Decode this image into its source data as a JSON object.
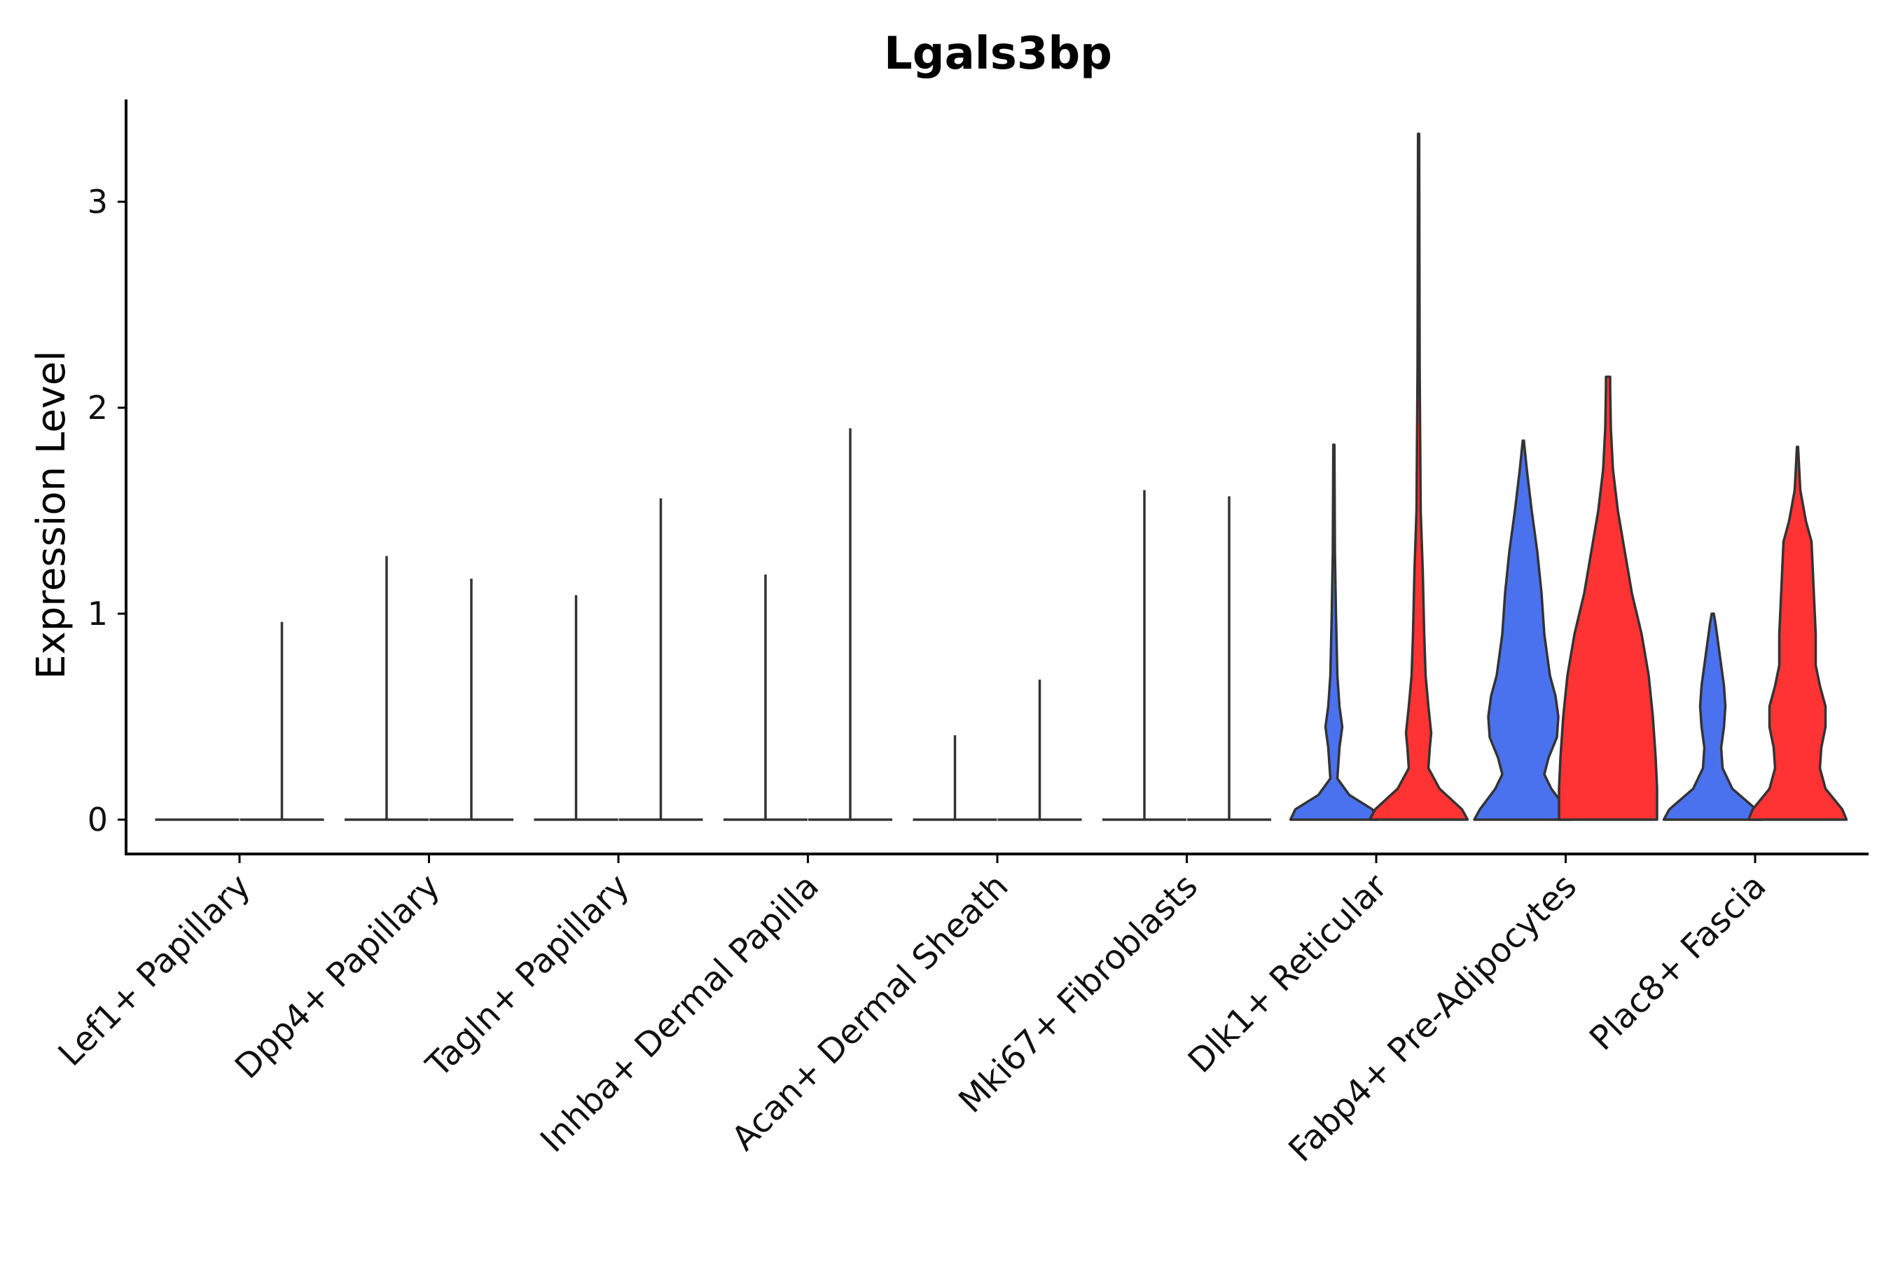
{
  "chart_data": {
    "type": "violin",
    "title": "Lgals3bp",
    "xlabel": "",
    "ylabel": "Expression Level",
    "ylim": [
      -0.17,
      3.5
    ],
    "yticks": [
      "0",
      "1",
      "2",
      "3"
    ],
    "grid": false,
    "legend": "none",
    "colors": {
      "group1": "#4A72EE",
      "group2": "#FF3333",
      "neutral": "#FFFFFF",
      "outline": "#333333"
    },
    "categories": [
      "Lef1+ Papillary",
      "Dpp4+ Papillary",
      "Tagln+ Papillary",
      "Inhba+ Dermal Papilla",
      "Acan+ Dermal Sheath",
      "Mki67+ Fibroblasts",
      "Dlk1+ Reticular",
      "Fabp4+ Pre-Adipocytes",
      "Plac8+ Fascia"
    ],
    "series": [
      {
        "name": "group1",
        "max_values": [
          0,
          1.28,
          1.09,
          1.19,
          0.41,
          1.6,
          1.82,
          1.84,
          1.0
        ]
      },
      {
        "name": "group2",
        "max_values": [
          0.96,
          1.17,
          1.56,
          1.9,
          0.68,
          1.57,
          3.33,
          2.15,
          1.81
        ]
      }
    ]
  }
}
